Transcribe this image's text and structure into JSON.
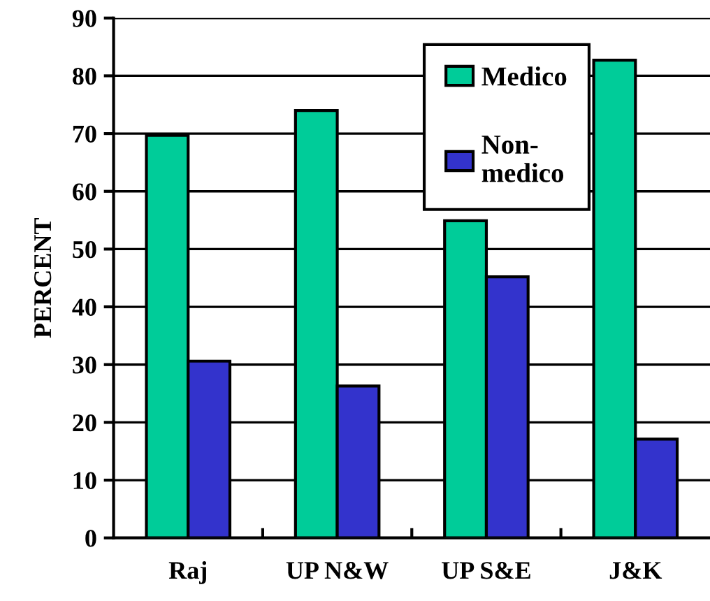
{
  "chart_data": {
    "type": "bar",
    "ylabel": "PERCENT",
    "categories": [
      "Raj",
      "UP N&W",
      "UP S&E",
      "J&K"
    ],
    "series": [
      {
        "name": "Medico",
        "color": "#00cc99",
        "values": [
          69.7,
          74.0,
          54.9,
          82.7
        ]
      },
      {
        "name": "Non-\nmedico",
        "color": "#3333cc",
        "values": [
          30.6,
          26.3,
          45.2,
          17.1
        ]
      }
    ],
    "ylim": [
      0,
      90
    ],
    "yticks": [
      0,
      10,
      20,
      30,
      40,
      50,
      60,
      70,
      80,
      90
    ],
    "grid": "y",
    "legend": "top right"
  }
}
